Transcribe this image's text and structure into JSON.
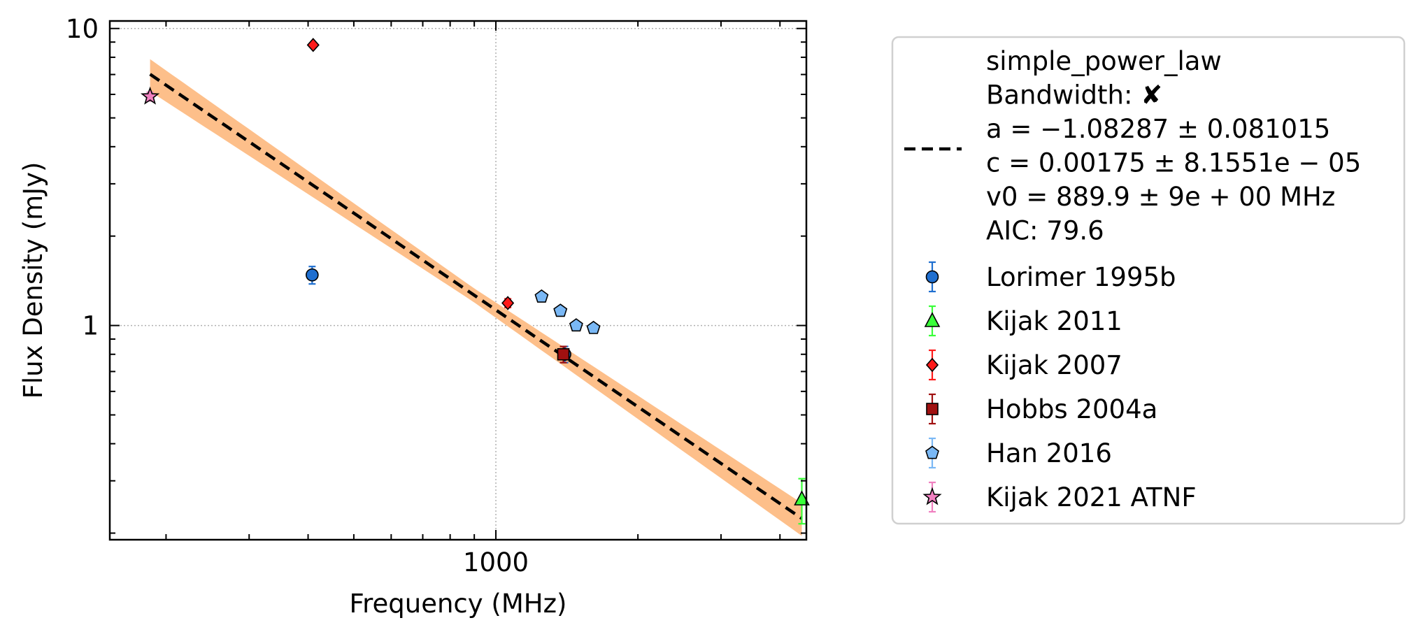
{
  "chart_data": {
    "type": "scatter",
    "xlabel": "Frequency (MHz)",
    "ylabel": "Flux Density (mJy)",
    "x_scale": "log",
    "y_scale": "log",
    "xlim": [
      152,
      4550
    ],
    "ylim": [
      0.19,
      10.6
    ],
    "x_ticks": [
      {
        "value": 1000,
        "label": "1000"
      }
    ],
    "y_ticks": [
      {
        "value": 1,
        "label": "1"
      },
      {
        "value": 10,
        "label": "10"
      }
    ],
    "grid": true,
    "legend_position": "outside-right",
    "fit": {
      "label_lines": [
        "simple_power_law",
        "Bandwidth: ✘",
        "a = −1.08287 ± 0.081015",
        "c = 0.00175 ± 8.1551e − 05",
        "v0 = 889.9 ± 9e + 00 MHz",
        "AIC: 79.6"
      ],
      "model": "simple_power_law",
      "a": -1.08287,
      "c": 0.00175,
      "v0": 889.9,
      "x_range": [
        185,
        4450
      ],
      "band_fraction": 0.09,
      "line_color": "#000000",
      "band_color": "#fdbf8a"
    },
    "series": [
      {
        "name": "Lorimer 1995b",
        "marker": "circle",
        "color": "#1f6fd0",
        "ecolor": "#1f6fd0",
        "points": [
          {
            "x": 408,
            "y": 1.48,
            "err": 0.1
          },
          {
            "x": 1400,
            "y": 0.8,
            "err": 0.05
          }
        ]
      },
      {
        "name": "Kijak 2011",
        "marker": "triangle",
        "color": "#39ff39",
        "ecolor": "#39ff39",
        "points": [
          {
            "x": 4450,
            "y": 0.26,
            "err": 0.045
          }
        ]
      },
      {
        "name": "Kijak 2007",
        "marker": "diamond",
        "color": "#ff1a1a",
        "ecolor": "#ff1a1a",
        "points": [
          {
            "x": 410,
            "y": 8.8,
            "err": 0.15
          },
          {
            "x": 1060,
            "y": 1.19,
            "err": 0.04
          }
        ]
      },
      {
        "name": "Hobbs 2004a",
        "marker": "square",
        "color": "#a01010",
        "ecolor": "#a01010",
        "points": [
          {
            "x": 1390,
            "y": 0.8,
            "err": 0.05
          }
        ]
      },
      {
        "name": "Han 2016",
        "marker": "pentagon",
        "color": "#7ab8f5",
        "ecolor": "#7ab8f5",
        "points": [
          {
            "x": 1250,
            "y": 1.25,
            "err": 0.02
          },
          {
            "x": 1370,
            "y": 1.12,
            "err": 0.02
          },
          {
            "x": 1480,
            "y": 1.0,
            "err": 0.02
          },
          {
            "x": 1610,
            "y": 0.98,
            "err": 0.02
          }
        ]
      },
      {
        "name": "Kijak 2021 ATNF",
        "marker": "star",
        "color": "#f080c0",
        "ecolor": "#f080c0",
        "points": [
          {
            "x": 185,
            "y": 5.9,
            "err": 0.2
          }
        ]
      }
    ]
  }
}
